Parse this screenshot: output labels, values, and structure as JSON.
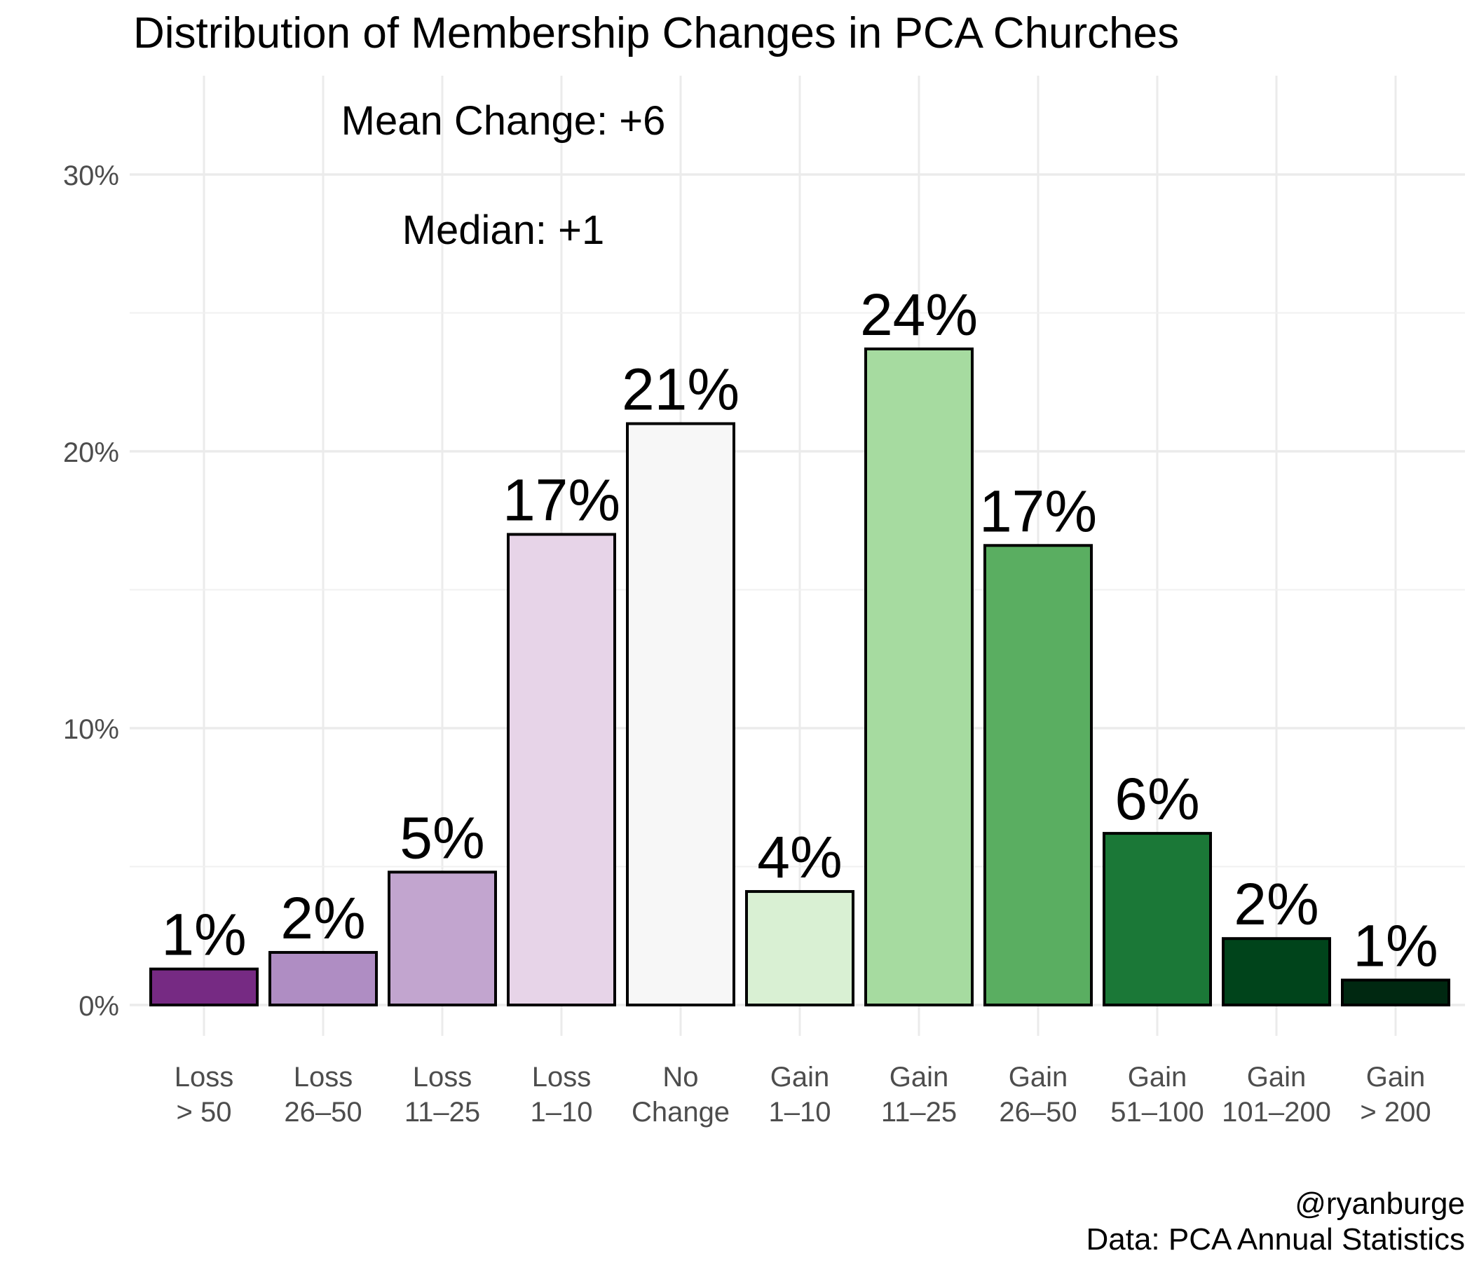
{
  "chart_data": {
    "type": "bar",
    "title": "Distribution of Membership Changes in PCA Churches",
    "annotations": [
      "Mean Change: +6",
      "Median: +1"
    ],
    "categories": [
      [
        "Loss",
        "> 50"
      ],
      [
        "Loss",
        "26–50"
      ],
      [
        "Loss",
        "11–25"
      ],
      [
        "Loss",
        "1–10"
      ],
      [
        "No",
        "Change"
      ],
      [
        "Gain",
        "1–10"
      ],
      [
        "Gain",
        "11–25"
      ],
      [
        "Gain",
        "26–50"
      ],
      [
        "Gain",
        "51–100"
      ],
      [
        "Gain",
        "101–200"
      ],
      [
        "Gain",
        "> 200"
      ]
    ],
    "values": [
      1.3,
      1.9,
      4.8,
      17.0,
      21.0,
      4.1,
      23.7,
      16.6,
      6.2,
      2.4,
      0.9
    ],
    "value_labels": [
      "1%",
      "2%",
      "5%",
      "17%",
      "21%",
      "4%",
      "24%",
      "17%",
      "6%",
      "2%",
      "1%"
    ],
    "colors": [
      "#762a83",
      "#af8dc3",
      "#c2a5cf",
      "#e7d4e8",
      "#f7f7f7",
      "#d9f0d3",
      "#a6dba0",
      "#5aae61",
      "#1b7837",
      "#00441b",
      "#002811"
    ],
    "ylim": [
      0,
      31
    ],
    "yticks": [
      0,
      10,
      20,
      30
    ],
    "ytick_labels": [
      "0%",
      "10%",
      "20%",
      "30%"
    ],
    "grid": true,
    "xlabel": "",
    "ylabel": "",
    "caption": [
      "@ryanburge",
      "Data: PCA Annual Statistics"
    ]
  }
}
